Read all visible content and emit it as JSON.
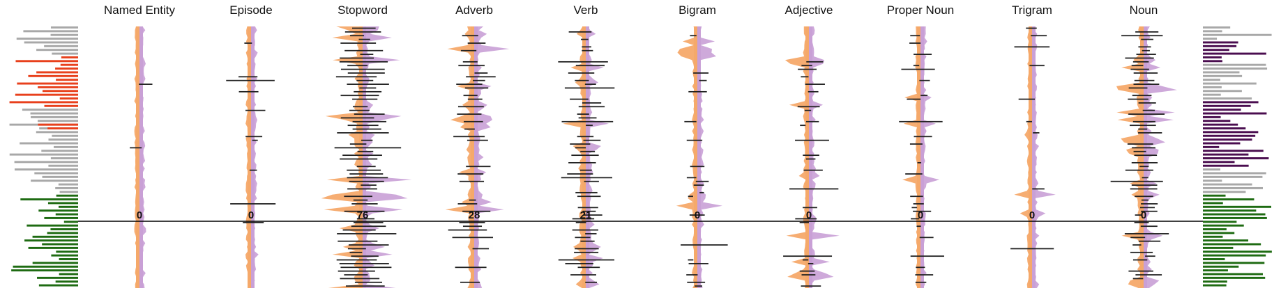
{
  "colors": {
    "orange": "#f5a96a",
    "purple": "#c9a0d6",
    "bar": "#222222",
    "gray": "#a8a8a8",
    "red": "#e8401c",
    "green": "#1e6b12",
    "dark_purple": "#4a0d4f",
    "axis": "#000000"
  },
  "chart_data": {
    "type": "bar",
    "orientation": "horizontal-per-row",
    "row_count": 70,
    "axis_row": 52,
    "columns": [
      {
        "name": "Named Entity",
        "value": "0",
        "density": 0.04,
        "scale": 0.35,
        "seed": 11
      },
      {
        "name": "Episode",
        "value": "0",
        "density": 0.06,
        "scale": 0.4,
        "seed": 23
      },
      {
        "name": "Stopword",
        "value": "76",
        "density": 0.95,
        "scale": 0.85,
        "seed": 37
      },
      {
        "name": "Adverb",
        "value": "28",
        "density": 0.45,
        "scale": 0.6,
        "seed": 41
      },
      {
        "name": "Verb",
        "value": "21",
        "density": 0.65,
        "scale": 0.55,
        "seed": 53
      },
      {
        "name": "Bigram",
        "value": "0",
        "density": 0.3,
        "scale": 0.4,
        "seed": 67
      },
      {
        "name": "Adjective",
        "value": "0",
        "density": 0.35,
        "scale": 0.45,
        "seed": 71
      },
      {
        "name": "Proper Noun",
        "value": "0",
        "density": 0.25,
        "scale": 0.35,
        "seed": 83
      },
      {
        "name": "Trigram",
        "value": "0",
        "density": 0.12,
        "scale": 0.35,
        "seed": 97
      },
      {
        "name": "Noun",
        "value": "0",
        "density": 0.75,
        "scale": 0.55,
        "seed": 101
      }
    ],
    "left_summary": [
      {
        "color": "gray",
        "from": 0,
        "to": 8
      },
      {
        "color": "red",
        "from": 8,
        "to": 22
      },
      {
        "color": "gray",
        "from": 22,
        "to": 38
      },
      {
        "color": "red",
        "from": 26,
        "to": 28
      },
      {
        "color": "gray",
        "from": 38,
        "to": 45
      },
      {
        "color": "green",
        "from": 45,
        "to": 70
      }
    ],
    "right_summary": [
      {
        "color": "gray",
        "from": 0,
        "to": 4
      },
      {
        "color": "dark_purple",
        "from": 4,
        "to": 10
      },
      {
        "color": "gray",
        "from": 10,
        "to": 20
      },
      {
        "color": "dark_purple",
        "from": 20,
        "to": 38
      },
      {
        "color": "gray",
        "from": 38,
        "to": 45
      },
      {
        "color": "green",
        "from": 45,
        "to": 70
      }
    ]
  }
}
